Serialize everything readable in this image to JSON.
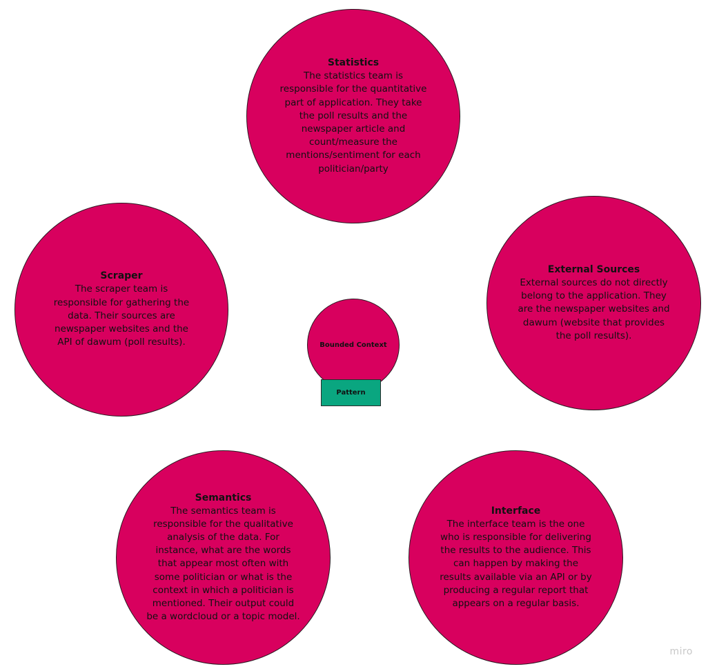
{
  "nodes": {
    "statistics": {
      "title": "Statistics",
      "text": "The statistics team is responsible for the quantitative part of application. They take the poll results and the newspaper article and count/measure the mentions/sentiment for each politician/party"
    },
    "scraper": {
      "title": "Scraper",
      "text": "The scraper team is responsible for gathering the data. Their sources are newspaper websites and the API of dawum (poll results)."
    },
    "external_sources": {
      "title": "External Sources",
      "text": "External sources do not directly belong to the application. They are the newspaper websites and dawum (website that provides the poll results)."
    },
    "semantics": {
      "title": "Semantics",
      "text": "The semantics team is responsible for the qualitative analysis of the data. For instance, what are the words that appear most often with some politician or what is the context in which a politician is mentioned. Their output could be a wordcloud or a topic model."
    },
    "interface": {
      "title": "Interface",
      "text": "The interface team is the one who is responsible for delivering the results to the audience. This can happen by making the results available via an API or by producing a regular report that appears on a regular basis."
    }
  },
  "legend": {
    "bounded_context": "Bounded Context",
    "pattern": "Pattern"
  },
  "watermark": "miro",
  "colors": {
    "bounded_context_fill": "#d8005e",
    "pattern_fill": "#0aa680",
    "background": "#ffffff"
  }
}
